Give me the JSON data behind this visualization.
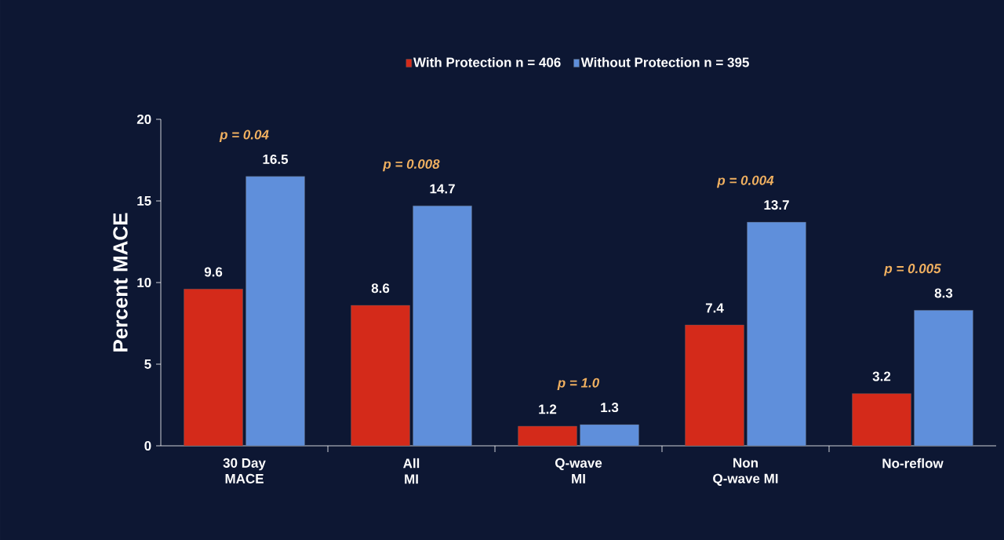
{
  "chart_data": {
    "type": "bar",
    "ylabel": "Percent MACE",
    "categories": [
      "30 Day MACE",
      "All MI",
      "Q-wave MI",
      "Non Q-wave MI",
      "No-reflow"
    ],
    "series": [
      {
        "name": "With Protection n = 406",
        "color": "#d42a1a",
        "values": [
          9.6,
          8.6,
          1.2,
          7.4,
          3.2
        ]
      },
      {
        "name": "Without Protection n = 395",
        "color": "#5f8fdb",
        "values": [
          16.5,
          14.7,
          1.3,
          13.7,
          8.3
        ]
      }
    ],
    "ylim": [
      0,
      20
    ],
    "yticks": [
      0,
      5,
      10,
      15,
      20
    ],
    "data_labels": true,
    "legend": "top",
    "annotations": [
      "p = 0.04",
      "p = 0.008",
      "p = 1.0",
      "p = 0.004",
      "p = 0.005"
    ]
  }
}
